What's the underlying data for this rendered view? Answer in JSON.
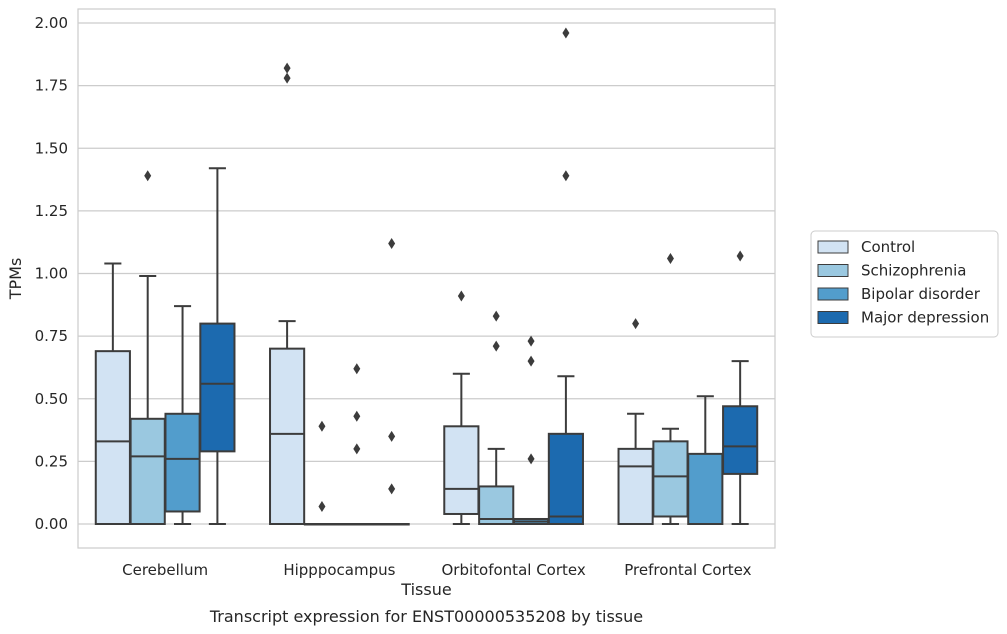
{
  "chart_data": {
    "type": "box",
    "caption": "Transcript expression for ENST00000535208 by tissue",
    "xlabel": "Tissue",
    "ylabel": "TPMs",
    "ylim": [
      -0.1,
      2.06
    ],
    "yticks": [
      0.0,
      0.25,
      0.5,
      0.75,
      1.0,
      1.25,
      1.5,
      1.75,
      2.0
    ],
    "ytick_labels": [
      "0.00",
      "0.25",
      "0.50",
      "0.75",
      "1.00",
      "1.25",
      "1.50",
      "1.75",
      "2.00"
    ],
    "grid": "horizontal",
    "legend_position": "right",
    "categories": [
      "Cerebellum",
      "Hipppocampus",
      "Orbitofontal Cortex",
      "Prefrontal Cortex"
    ],
    "series": [
      {
        "name": "Control",
        "color": "#d2e3f3",
        "boxes": [
          {
            "q1": 0.0,
            "median": 0.33,
            "q3": 0.69,
            "whisker_low": 0.0,
            "whisker_high": 1.04,
            "outliers": []
          },
          {
            "q1": 0.0,
            "median": 0.36,
            "q3": 0.7,
            "whisker_low": 0.0,
            "whisker_high": 0.81,
            "outliers": [
              1.78,
              1.82
            ]
          },
          {
            "q1": 0.04,
            "median": 0.14,
            "q3": 0.39,
            "whisker_low": 0.0,
            "whisker_high": 0.6,
            "outliers": [
              0.91
            ]
          },
          {
            "q1": 0.0,
            "median": 0.23,
            "q3": 0.3,
            "whisker_low": 0.0,
            "whisker_high": 0.44,
            "outliers": [
              0.8
            ]
          }
        ]
      },
      {
        "name": "Schizophrenia",
        "color": "#9ac8e0",
        "boxes": [
          {
            "q1": 0.0,
            "median": 0.27,
            "q3": 0.42,
            "whisker_low": 0.0,
            "whisker_high": 0.99,
            "outliers": [
              1.39
            ]
          },
          {
            "q1": 0.0,
            "median": 0.0,
            "q3": 0.0,
            "whisker_low": 0.0,
            "whisker_high": 0.0,
            "outliers": [
              0.07,
              0.39
            ]
          },
          {
            "q1": 0.0,
            "median": 0.02,
            "q3": 0.15,
            "whisker_low": 0.0,
            "whisker_high": 0.3,
            "outliers": [
              0.71,
              0.83
            ]
          },
          {
            "q1": 0.03,
            "median": 0.19,
            "q3": 0.33,
            "whisker_low": 0.0,
            "whisker_high": 0.38,
            "outliers": [
              1.06
            ]
          }
        ]
      },
      {
        "name": "Bipolar disorder",
        "color": "#529dcc",
        "boxes": [
          {
            "q1": 0.05,
            "median": 0.26,
            "q3": 0.44,
            "whisker_low": 0.0,
            "whisker_high": 0.87,
            "outliers": []
          },
          {
            "q1": 0.0,
            "median": 0.0,
            "q3": 0.0,
            "whisker_low": 0.0,
            "whisker_high": 0.0,
            "outliers": [
              0.3,
              0.43,
              0.62
            ]
          },
          {
            "q1": 0.0,
            "median": 0.01,
            "q3": 0.02,
            "whisker_low": 0.0,
            "whisker_high": 0.02,
            "outliers": [
              0.26,
              0.65,
              0.73
            ]
          },
          {
            "q1": 0.0,
            "median": 0.0,
            "q3": 0.28,
            "whisker_low": 0.0,
            "whisker_high": 0.51,
            "outliers": []
          }
        ]
      },
      {
        "name": "Major depression",
        "color": "#1c6aaf",
        "boxes": [
          {
            "q1": 0.29,
            "median": 0.56,
            "q3": 0.8,
            "whisker_low": 0.0,
            "whisker_high": 1.42,
            "outliers": []
          },
          {
            "q1": 0.0,
            "median": 0.0,
            "q3": 0.0,
            "whisker_low": 0.0,
            "whisker_high": 0.0,
            "outliers": [
              0.14,
              0.35,
              1.12
            ]
          },
          {
            "q1": 0.0,
            "median": 0.03,
            "q3": 0.36,
            "whisker_low": 0.0,
            "whisker_high": 0.59,
            "outliers": [
              1.39,
              1.96
            ]
          },
          {
            "q1": 0.2,
            "median": 0.31,
            "q3": 0.47,
            "whisker_low": 0.0,
            "whisker_high": 0.65,
            "outliers": [
              1.07
            ]
          }
        ]
      }
    ]
  }
}
